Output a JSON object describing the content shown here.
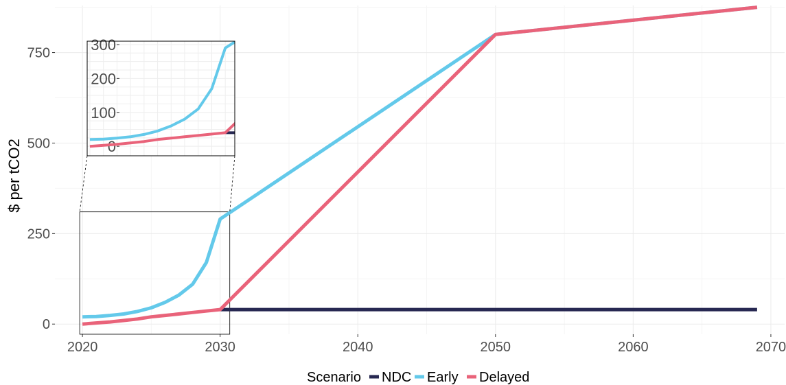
{
  "chart_data": {
    "type": "line",
    "title": "",
    "xlabel": "",
    "ylabel": "$ per tCO2",
    "xlim": [
      2018,
      2071
    ],
    "ylim": [
      -28,
      880
    ],
    "x_ticks": [
      "2020",
      "2030",
      "2040",
      "2050",
      "2060",
      "2070"
    ],
    "y_ticks": [
      "0",
      "250",
      "500",
      "750"
    ],
    "grid": true,
    "legend": {
      "title": "Scenario",
      "placement": "bottom",
      "entries": [
        "NDC",
        "Early",
        "Delayed"
      ]
    },
    "colors": {
      "NDC": "#272852",
      "Early": "#63c9ea",
      "Delayed": "#e9637a"
    },
    "series": [
      {
        "name": "NDC",
        "points": [
          [
            2030,
            40
          ],
          [
            2069,
            40
          ]
        ]
      },
      {
        "name": "Early",
        "points": [
          [
            2020,
            20
          ],
          [
            2021,
            21
          ],
          [
            2022,
            24
          ],
          [
            2023,
            28
          ],
          [
            2024,
            35
          ],
          [
            2025,
            45
          ],
          [
            2026,
            60
          ],
          [
            2027,
            80
          ],
          [
            2028,
            110
          ],
          [
            2029,
            170
          ],
          [
            2030,
            290
          ],
          [
            2050,
            800
          ],
          [
            2069,
            875
          ]
        ]
      },
      {
        "name": "Delayed",
        "points": [
          [
            2020,
            0
          ],
          [
            2021,
            3
          ],
          [
            2022,
            6
          ],
          [
            2023,
            10
          ],
          [
            2024,
            14
          ],
          [
            2025,
            20
          ],
          [
            2026,
            24
          ],
          [
            2027,
            28
          ],
          [
            2028,
            32
          ],
          [
            2029,
            36
          ],
          [
            2030,
            40
          ],
          [
            2050,
            800
          ],
          [
            2069,
            875
          ]
        ]
      }
    ],
    "inset": {
      "xlim": [
        2019.8,
        2030.7
      ],
      "ylim": [
        -28,
        310
      ],
      "y_ticks": [
        "0",
        "100",
        "200",
        "300"
      ],
      "zoom_region": {
        "x": [
          2019.8,
          2030.7
        ],
        "y": [
          -28,
          310
        ]
      }
    }
  }
}
